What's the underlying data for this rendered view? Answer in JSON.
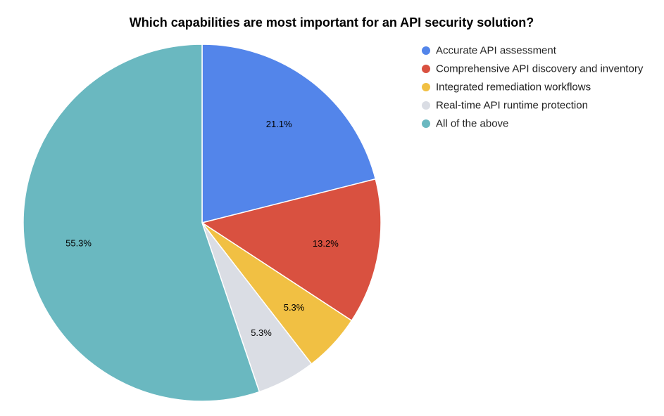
{
  "chart_data": {
    "type": "pie",
    "title": "Which capabilities are most important for an API security solution?",
    "legend_position": "right",
    "slices": [
      {
        "name": "Accurate API assessment",
        "value": 21.1,
        "label": "21.1%",
        "color": "#5385EA"
      },
      {
        "name": "Comprehensive API discovery and inventory",
        "value": 13.2,
        "label": "13.2%",
        "color": "#D95140"
      },
      {
        "name": "Integrated remediation workflows",
        "value": 5.3,
        "label": "5.3%",
        "color": "#F1C043"
      },
      {
        "name": "Real-time API runtime protection",
        "value": 5.3,
        "label": "5.3%",
        "color": "#DADDE4"
      },
      {
        "name": "All of the above",
        "value": 55.3,
        "label": "55.3%",
        "color": "#6AB8C0"
      }
    ]
  }
}
